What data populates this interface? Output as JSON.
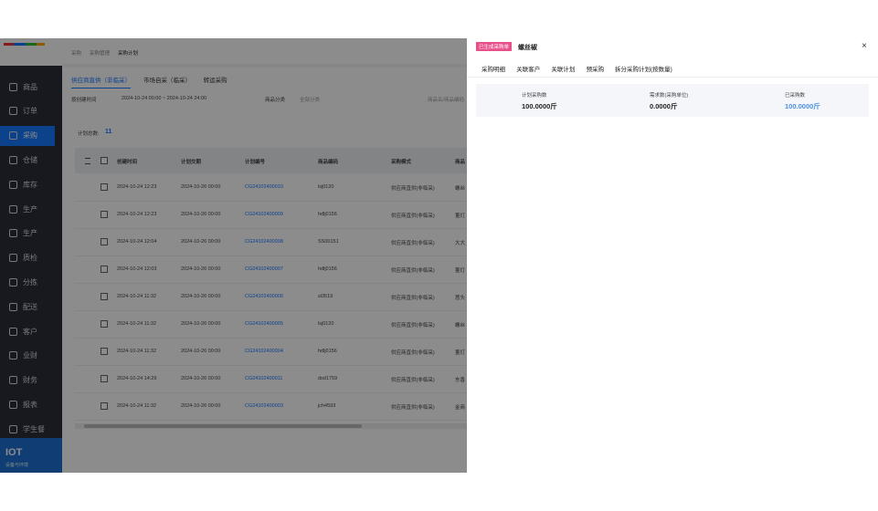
{
  "sidebar": {
    "menu": [
      "商品",
      "订单",
      "采购",
      "仓储",
      "库存",
      "生产",
      "生产",
      "质检",
      "分拣",
      "配送",
      "客户",
      "业财",
      "财务",
      "报表",
      "学生餐"
    ],
    "active": 2,
    "footer": {
      "title": "IOT",
      "subtitle": "设备与环境"
    }
  },
  "breadcrumb": [
    "采购",
    "采购管理",
    "采购计划"
  ],
  "tabs": [
    "供应商直供（非临采）",
    "市场自采（临采）",
    "转运采购"
  ],
  "filters": {
    "time_type": "按创建时间",
    "date_range": "2024-10-24 00:00 ~ 2024-10-24 24:00",
    "category_label": "商品分类",
    "category_value": "全部分类",
    "search_placeholder": "商品名/商品编码"
  },
  "count": {
    "label": "计划总数:",
    "value": "11"
  },
  "table": {
    "headers": [
      "创建时间",
      "计划交期",
      "计划编号",
      "商品编码",
      "采购模式",
      "商品"
    ],
    "rows": [
      [
        "2024-10-24 12:23",
        "2024-10-26 00:00",
        "CG24102400010",
        "lsj0120",
        "供应商直供(非临采)",
        "螺丝"
      ],
      [
        "2024-10-24 12:23",
        "2024-10-26 00:00",
        "CG24102400009",
        "hdlj0156",
        "供应商直供(非临采)",
        "董灯"
      ],
      [
        "2024-10-24 12:04",
        "2024-10-26 00:00",
        "CG24102400008",
        "SS00151",
        "供应商直供(非临采)",
        "大大"
      ],
      [
        "2024-10-24 12:03",
        "2024-10-26 00:00",
        "CG24102400007",
        "hdlj0156",
        "供应商直供(非临采)",
        "董灯"
      ],
      [
        "2024-10-24 11:32",
        "2024-10-26 00:00",
        "CG24102400006",
        "sl3519",
        "供应商直供(非临采)",
        "葱头"
      ],
      [
        "2024-10-24 11:32",
        "2024-10-26 00:00",
        "CG24102400005",
        "lsj0120",
        "供应商直供(非临采)",
        "螺丝"
      ],
      [
        "2024-10-24 11:32",
        "2024-10-26 00:00",
        "CG24102400004",
        "hdlj0156",
        "供应商直供(非临采)",
        "董灯"
      ],
      [
        "2024-10-24 14:29",
        "2024-10-26 00:00",
        "CG24102400011",
        "dsd1759",
        "供应商直供(非临采)",
        "东香"
      ],
      [
        "2024-10-24 11:32",
        "2024-10-26 00:00",
        "CG24102400003",
        "jch4593",
        "供应商直供(非临采)",
        "金商"
      ]
    ]
  },
  "drawer": {
    "tag": "已生成采购单",
    "title": "螺丝椒",
    "close": "×",
    "tabs": [
      "采购明细",
      "关联客户",
      "关联计划",
      "预采购",
      "拆分采购计划(按数量)"
    ],
    "stats": [
      {
        "label": "计划采购数",
        "value": "100.0000斤"
      },
      {
        "label": "需求数(采购单位)",
        "value": "0.0000斤"
      },
      {
        "label": "已采购数",
        "value": "100.0000斤"
      }
    ]
  }
}
